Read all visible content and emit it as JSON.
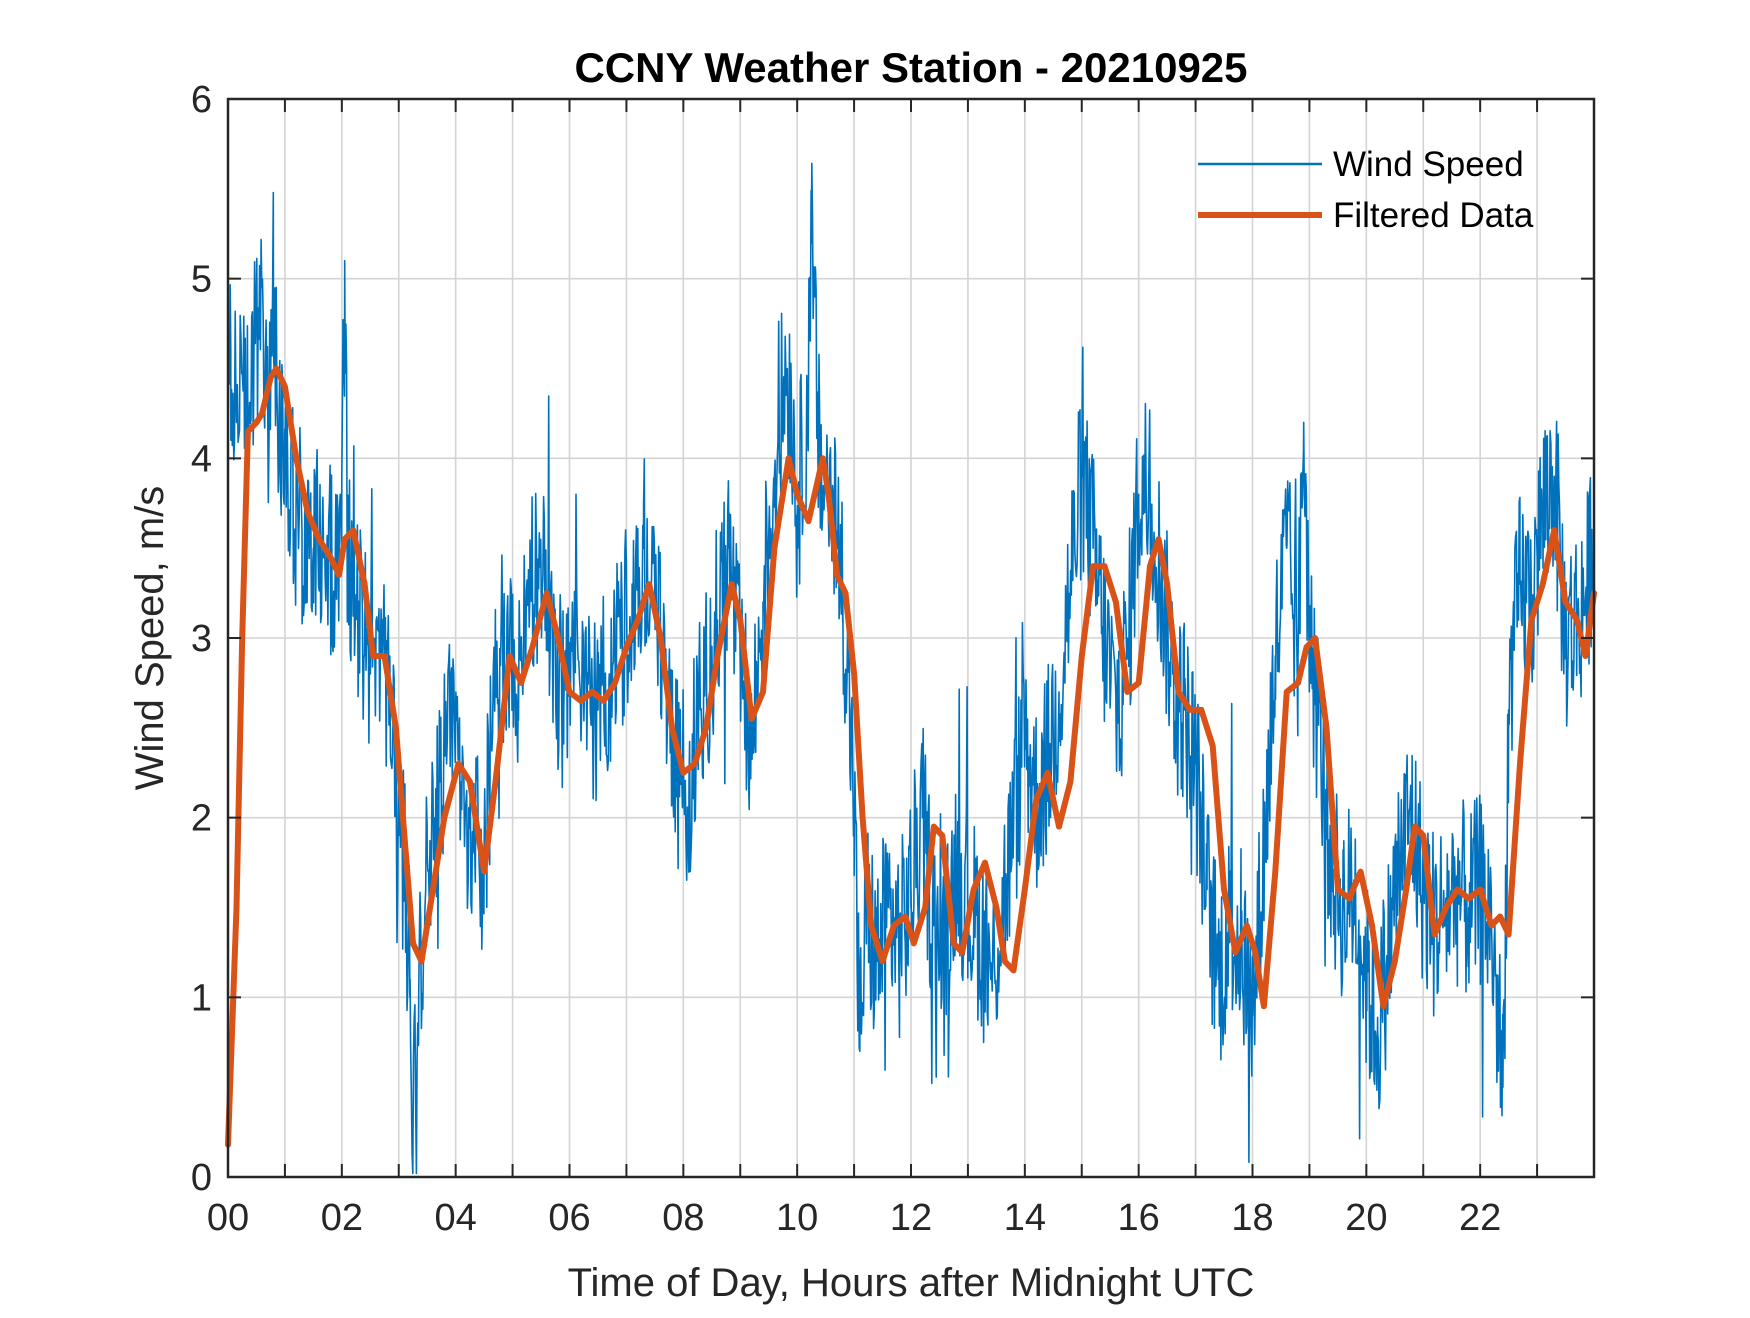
{
  "chart_data": {
    "type": "line",
    "title": "CCNY Weather Station - 20210925",
    "xlabel": "Time of Day, Hours after Midnight UTC",
    "ylabel": "Wind Speed, m/s",
    "xlim": [
      0,
      24
    ],
    "ylim": [
      0,
      6
    ],
    "grid": true,
    "legend_position": "top-right",
    "x_ticks": [
      0,
      2,
      4,
      6,
      8,
      10,
      12,
      14,
      16,
      18,
      20,
      22
    ],
    "x_tick_labels": [
      "00",
      "02",
      "04",
      "06",
      "08",
      "10",
      "12",
      "14",
      "16",
      "18",
      "20",
      "22"
    ],
    "x_minor_grid": [
      1,
      3,
      5,
      7,
      9,
      11,
      13,
      15,
      17,
      19,
      21,
      23
    ],
    "y_ticks": [
      0,
      1,
      2,
      3,
      4,
      5,
      6
    ],
    "y_tick_labels": [
      "0",
      "1",
      "2",
      "3",
      "4",
      "5",
      "6"
    ],
    "series": [
      {
        "name": "Wind Speed",
        "color": "#0072BD",
        "style": "thin-noisy",
        "x": [
          0,
          0.05,
          0.15,
          0.3,
          0.45,
          0.55,
          0.7,
          0.8,
          0.9,
          1.0,
          1.1,
          1.3,
          1.5,
          1.7,
          1.9,
          2.0,
          2.05,
          2.1,
          2.3,
          2.5,
          2.7,
          2.9,
          3.0,
          3.1,
          3.2,
          3.25,
          3.35,
          3.5,
          3.7,
          3.85,
          4.0,
          4.1,
          4.3,
          4.5,
          4.7,
          4.9,
          5.1,
          5.3,
          5.5,
          5.7,
          5.9,
          6.1,
          6.3,
          6.5,
          6.7,
          6.9,
          7.1,
          7.3,
          7.5,
          7.7,
          7.9,
          8.1,
          8.3,
          8.6,
          8.8,
          9.0,
          9.2,
          9.4,
          9.6,
          9.8,
          9.9,
          10.0,
          10.2,
          10.25,
          10.4,
          10.6,
          10.8,
          11.0,
          11.1,
          11.2,
          11.4,
          11.6,
          11.8,
          12.0,
          12.2,
          12.4,
          12.6,
          12.8,
          13.0,
          13.2,
          13.4,
          13.6,
          13.8,
          14.0,
          14.2,
          14.4,
          14.6,
          14.8,
          15.0,
          15.2,
          15.4,
          15.6,
          15.8,
          16.0,
          16.2,
          16.4,
          16.6,
          16.8,
          17.0,
          17.2,
          17.4,
          17.6,
          17.8,
          18.0,
          18.2,
          18.4,
          18.6,
          18.8,
          18.9,
          19.0,
          19.2,
          19.4,
          19.6,
          19.8,
          20.0,
          20.2,
          20.4,
          20.6,
          20.8,
          21.0,
          21.2,
          21.4,
          21.6,
          21.8,
          22.0,
          22.2,
          22.4,
          22.5,
          22.7,
          22.9,
          23.1,
          23.3,
          23.5,
          23.7,
          23.9,
          24.0
        ],
        "y": [
          4.1,
          4.6,
          4.2,
          4.5,
          4.3,
          4.9,
          4.2,
          4.6,
          4.3,
          4.0,
          3.8,
          3.6,
          3.5,
          3.5,
          3.4,
          3.9,
          5.1,
          3.5,
          3.1,
          2.8,
          2.9,
          2.6,
          1.9,
          1.7,
          1.1,
          0.2,
          1.0,
          1.8,
          2.1,
          2.4,
          2.6,
          2.2,
          1.8,
          1.8,
          2.7,
          3.0,
          2.8,
          3.2,
          3.4,
          3.0,
          2.6,
          2.9,
          2.6,
          2.6,
          2.8,
          3.0,
          3.3,
          3.5,
          3.2,
          2.8,
          2.2,
          2.2,
          2.6,
          3.1,
          3.5,
          2.8,
          2.4,
          3.2,
          3.9,
          4.5,
          4.3,
          3.7,
          4.4,
          5.2,
          3.9,
          3.8,
          3.3,
          2.1,
          0.7,
          1.5,
          1.2,
          1.5,
          1.3,
          1.6,
          2.0,
          1.4,
          1.2,
          1.8,
          1.5,
          1.4,
          1.1,
          1.5,
          1.9,
          2.5,
          2.1,
          2.3,
          2.7,
          3.3,
          3.9,
          3.5,
          3.0,
          2.6,
          2.9,
          3.8,
          3.9,
          3.3,
          2.8,
          2.6,
          2.3,
          1.6,
          1.1,
          1.4,
          1.3,
          0.9,
          1.8,
          2.9,
          3.5,
          2.9,
          4.2,
          3.0,
          2.4,
          1.7,
          1.5,
          1.6,
          1.1,
          0.8,
          1.3,
          1.8,
          2.0,
          1.6,
          1.4,
          1.5,
          1.6,
          1.5,
          1.6,
          1.4,
          0.5,
          2.6,
          3.3,
          3.2,
          3.7,
          3.9,
          3.0,
          3.1,
          3.3,
          3.7
        ]
      },
      {
        "name": "Filtered Data",
        "color": "#D95319",
        "style": "thick-smooth",
        "x": [
          0,
          0.15,
          0.25,
          0.35,
          0.5,
          0.6,
          0.75,
          0.85,
          1.0,
          1.2,
          1.4,
          1.6,
          1.8,
          1.95,
          2.05,
          2.2,
          2.4,
          2.55,
          2.75,
          2.95,
          3.1,
          3.25,
          3.4,
          3.6,
          3.8,
          4.05,
          4.25,
          4.5,
          4.7,
          4.95,
          5.15,
          5.35,
          5.6,
          5.8,
          6.0,
          6.2,
          6.4,
          6.6,
          6.8,
          7.0,
          7.2,
          7.4,
          7.6,
          7.8,
          8.0,
          8.2,
          8.4,
          8.6,
          8.85,
          9.0,
          9.2,
          9.4,
          9.6,
          9.85,
          10.0,
          10.2,
          10.45,
          10.55,
          10.7,
          10.85,
          11.0,
          11.15,
          11.3,
          11.5,
          11.7,
          11.9,
          12.05,
          12.25,
          12.4,
          12.55,
          12.75,
          12.9,
          13.1,
          13.3,
          13.5,
          13.65,
          13.8,
          14.0,
          14.2,
          14.4,
          14.6,
          14.8,
          15.0,
          15.2,
          15.4,
          15.6,
          15.8,
          16.0,
          16.2,
          16.35,
          16.5,
          16.7,
          16.9,
          17.1,
          17.3,
          17.5,
          17.7,
          17.9,
          18.05,
          18.2,
          18.4,
          18.6,
          18.8,
          18.95,
          19.1,
          19.3,
          19.5,
          19.7,
          19.9,
          20.1,
          20.3,
          20.5,
          20.7,
          20.85,
          21.0,
          21.2,
          21.4,
          21.6,
          21.8,
          22.0,
          22.2,
          22.35,
          22.5,
          22.7,
          22.9,
          23.1,
          23.3,
          23.5,
          23.7,
          23.85,
          24.0
        ],
        "y": [
          0.18,
          1.5,
          3.0,
          4.15,
          4.2,
          4.25,
          4.45,
          4.5,
          4.4,
          4.0,
          3.7,
          3.55,
          3.45,
          3.35,
          3.55,
          3.6,
          3.3,
          2.9,
          2.9,
          2.5,
          1.9,
          1.3,
          1.2,
          1.6,
          2.0,
          2.3,
          2.2,
          1.7,
          2.2,
          2.9,
          2.75,
          2.95,
          3.25,
          3.0,
          2.7,
          2.65,
          2.7,
          2.65,
          2.75,
          2.95,
          3.1,
          3.3,
          3.0,
          2.5,
          2.25,
          2.3,
          2.5,
          2.9,
          3.3,
          3.1,
          2.55,
          2.7,
          3.5,
          4.0,
          3.8,
          3.65,
          4.0,
          3.8,
          3.35,
          3.25,
          2.8,
          2.0,
          1.4,
          1.2,
          1.4,
          1.45,
          1.3,
          1.5,
          1.95,
          1.9,
          1.3,
          1.25,
          1.6,
          1.75,
          1.5,
          1.2,
          1.15,
          1.6,
          2.1,
          2.25,
          1.95,
          2.2,
          2.9,
          3.4,
          3.4,
          3.2,
          2.7,
          2.75,
          3.4,
          3.55,
          3.3,
          2.7,
          2.6,
          2.6,
          2.4,
          1.6,
          1.25,
          1.4,
          1.25,
          0.95,
          1.7,
          2.7,
          2.75,
          2.95,
          3.0,
          2.5,
          1.6,
          1.55,
          1.7,
          1.4,
          0.95,
          1.2,
          1.6,
          1.95,
          1.9,
          1.35,
          1.5,
          1.6,
          1.55,
          1.6,
          1.4,
          1.45,
          1.35,
          2.3,
          3.1,
          3.3,
          3.6,
          3.2,
          3.1,
          2.9,
          3.25
        ]
      }
    ]
  }
}
